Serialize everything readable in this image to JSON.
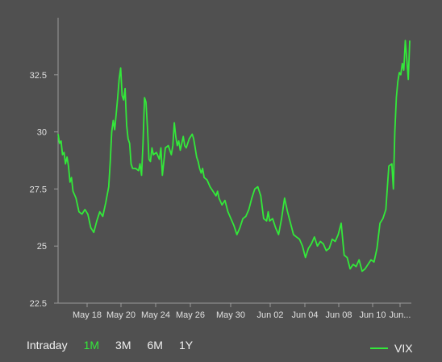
{
  "chart_data": {
    "type": "line",
    "title": "",
    "xlabel": "",
    "ylabel": "",
    "ylim": [
      22.5,
      35
    ],
    "y_ticks": [
      "22.5",
      "25",
      "27.5",
      "30",
      "32.5"
    ],
    "x_ticks": [
      "May 18",
      "May 20",
      "May 24",
      "May 26",
      "May 30",
      "Jun 02",
      "Jun 04",
      "Jun 08",
      "Jun 10",
      "Jun..."
    ],
    "grid": false,
    "legend_position": "bottom-right",
    "series": [
      {
        "name": "VIX",
        "color": "#33e83a",
        "points": [
          [
            0,
            29.9
          ],
          [
            0.5,
            29.5
          ],
          [
            1,
            29.6
          ],
          [
            1.5,
            29.0
          ],
          [
            2,
            29.1
          ],
          [
            2.5,
            28.6
          ],
          [
            3,
            28.9
          ],
          [
            3.5,
            28.5
          ],
          [
            4,
            27.8
          ],
          [
            4.5,
            28.0
          ],
          [
            5,
            27.4
          ],
          [
            6,
            27.1
          ],
          [
            7,
            26.5
          ],
          [
            8,
            26.4
          ],
          [
            9,
            26.6
          ],
          [
            10,
            26.4
          ],
          [
            11,
            25.8
          ],
          [
            12,
            25.6
          ],
          [
            13,
            26.1
          ],
          [
            14,
            26.5
          ],
          [
            15,
            26.3
          ],
          [
            16,
            26.9
          ],
          [
            17,
            27.6
          ],
          [
            17.5,
            28.7
          ],
          [
            18,
            30.0
          ],
          [
            18.5,
            30.5
          ],
          [
            19,
            30.1
          ],
          [
            19.5,
            30.8
          ],
          [
            20,
            31.5
          ],
          [
            20.5,
            32.3
          ],
          [
            21,
            32.8
          ],
          [
            21.5,
            31.6
          ],
          [
            22,
            31.4
          ],
          [
            22.5,
            31.9
          ],
          [
            23,
            30.3
          ],
          [
            23.5,
            29.7
          ],
          [
            24,
            29.5
          ],
          [
            24.5,
            28.6
          ],
          [
            25,
            28.4
          ],
          [
            26,
            28.4
          ],
          [
            27,
            28.3
          ],
          [
            27.5,
            28.6
          ],
          [
            28,
            28.1
          ],
          [
            28.5,
            29.5
          ],
          [
            29,
            31.5
          ],
          [
            29.5,
            31.3
          ],
          [
            30,
            30.2
          ],
          [
            30.5,
            28.8
          ],
          [
            31,
            28.7
          ],
          [
            31.5,
            29.3
          ],
          [
            32,
            29.0
          ],
          [
            33,
            29.1
          ],
          [
            34,
            28.8
          ],
          [
            34.5,
            29.3
          ],
          [
            35,
            28.1
          ],
          [
            36,
            29.3
          ],
          [
            37,
            29.4
          ],
          [
            38,
            29.0
          ],
          [
            38.5,
            29.4
          ],
          [
            39,
            30.4
          ],
          [
            39.5,
            29.8
          ],
          [
            40,
            29.4
          ],
          [
            40.5,
            29.6
          ],
          [
            41,
            29.2
          ],
          [
            42,
            29.8
          ],
          [
            42.5,
            29.4
          ],
          [
            43,
            29.3
          ],
          [
            44,
            29.7
          ],
          [
            45,
            29.9
          ],
          [
            45.5,
            29.7
          ],
          [
            46,
            29.3
          ],
          [
            46.5,
            28.9
          ],
          [
            47,
            28.7
          ],
          [
            47.5,
            28.4
          ],
          [
            48,
            28.2
          ],
          [
            48.5,
            28.4
          ],
          [
            49,
            28.0
          ],
          [
            50,
            27.9
          ],
          [
            51,
            27.6
          ],
          [
            52,
            27.4
          ],
          [
            53,
            27.2
          ],
          [
            53.5,
            27.4
          ],
          [
            54,
            27.1
          ],
          [
            55,
            26.8
          ],
          [
            56,
            27.0
          ],
          [
            57,
            26.5
          ],
          [
            58,
            26.2
          ],
          [
            59,
            25.9
          ],
          [
            60,
            25.5
          ],
          [
            61,
            25.8
          ],
          [
            62,
            26.2
          ],
          [
            63,
            26.3
          ],
          [
            64,
            26.6
          ],
          [
            65,
            27.1
          ],
          [
            66,
            27.5
          ],
          [
            67,
            27.6
          ],
          [
            68,
            27.2
          ],
          [
            69,
            26.2
          ],
          [
            70,
            26.1
          ],
          [
            70.5,
            26.5
          ],
          [
            71,
            26.1
          ],
          [
            72,
            26.2
          ],
          [
            73,
            25.8
          ],
          [
            74,
            25.5
          ],
          [
            75,
            26.2
          ],
          [
            76,
            27.1
          ],
          [
            77,
            26.5
          ],
          [
            78,
            26.0
          ],
          [
            79,
            25.5
          ],
          [
            80,
            25.4
          ],
          [
            81,
            25.3
          ],
          [
            82,
            25.0
          ],
          [
            83,
            24.5
          ],
          [
            84,
            24.9
          ],
          [
            85,
            25.1
          ],
          [
            86,
            25.4
          ],
          [
            87,
            25.0
          ],
          [
            88,
            25.2
          ],
          [
            89,
            25.1
          ],
          [
            90,
            24.8
          ],
          [
            91,
            24.9
          ],
          [
            92,
            25.3
          ],
          [
            93,
            25.2
          ],
          [
            94,
            25.5
          ],
          [
            95,
            26.0
          ],
          [
            96,
            24.6
          ],
          [
            97,
            24.5
          ],
          [
            98,
            24.0
          ],
          [
            99,
            24.2
          ],
          [
            100,
            24.1
          ],
          [
            101,
            24.4
          ],
          [
            102,
            23.9
          ],
          [
            103,
            24.0
          ],
          [
            104,
            24.2
          ],
          [
            105,
            24.4
          ],
          [
            106,
            24.3
          ],
          [
            107,
            24.9
          ],
          [
            108,
            26.0
          ],
          [
            109,
            26.2
          ],
          [
            110,
            26.6
          ],
          [
            110.5,
            27.6
          ],
          [
            111,
            28.5
          ],
          [
            112,
            28.6
          ],
          [
            112.5,
            27.5
          ],
          [
            113,
            30.0
          ],
          [
            113.5,
            31.5
          ],
          [
            114,
            32.2
          ],
          [
            114.5,
            32.6
          ],
          [
            115,
            32.5
          ],
          [
            115.5,
            33.0
          ],
          [
            116,
            32.7
          ],
          [
            116.5,
            34.0
          ],
          [
            117,
            33.2
          ],
          [
            117.5,
            32.3
          ],
          [
            118,
            34.0
          ]
        ]
      }
    ]
  },
  "range_selector": {
    "intraday_label": "Intraday",
    "options": [
      "1M",
      "3M",
      "6M",
      "1Y"
    ],
    "selected": "1M"
  }
}
